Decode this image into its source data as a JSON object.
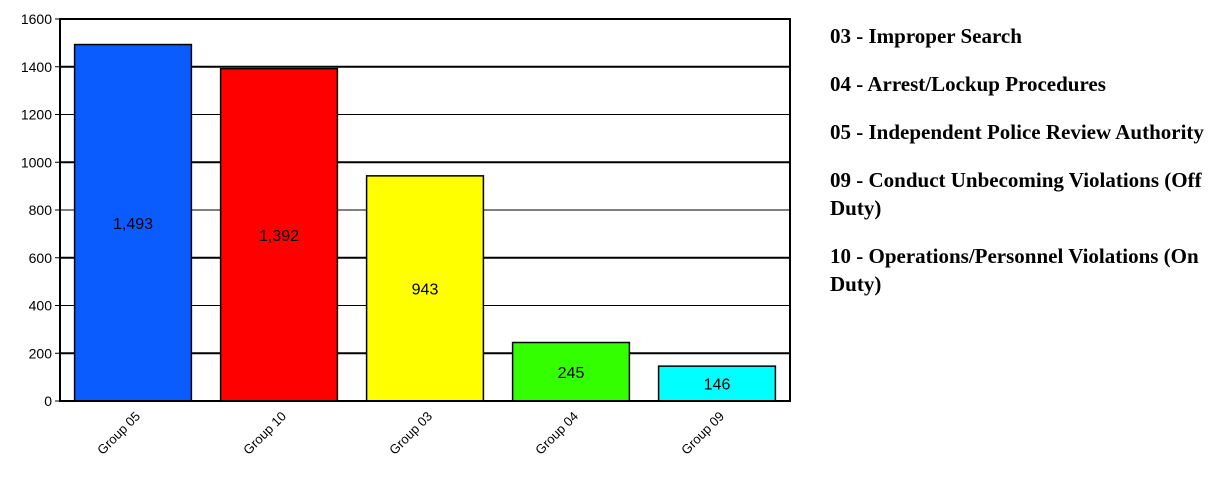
{
  "chart_data": {
    "type": "bar",
    "categories": [
      "Group 05",
      "Group 10",
      "Group 03",
      "Group 04",
      "Group 09"
    ],
    "values": [
      1493,
      1392,
      943,
      245,
      146
    ],
    "value_labels": [
      "1,493",
      "1,392",
      "943",
      "245",
      "146"
    ],
    "bar_colors": [
      "#0b5cff",
      "#ff0000",
      "#ffff00",
      "#33ff00",
      "#00ffff"
    ],
    "ylim": [
      0,
      1600
    ],
    "yticks": [
      "0",
      "200",
      "400",
      "600",
      "800",
      "1000",
      "1200",
      "1400",
      "1600"
    ],
    "grid": true,
    "legend_position": "right"
  },
  "legend": {
    "items": [
      "03 - Improper Search",
      "04 - Arrest/Lockup Procedures",
      "05 - Independent Police Review Authority",
      "09 - Conduct Unbecoming Violations (Off Duty)",
      "10 - Operations/Personnel Violations (On Duty)"
    ]
  }
}
